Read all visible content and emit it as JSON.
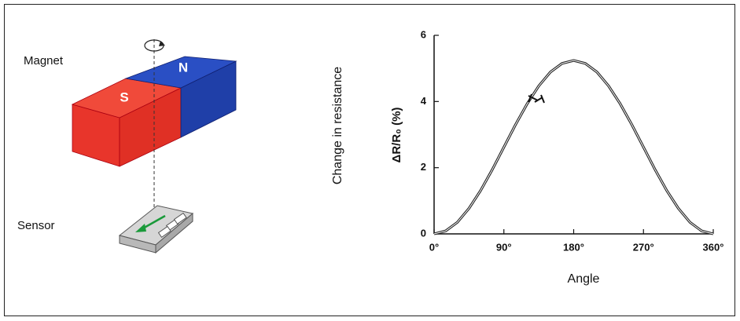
{
  "diagram": {
    "magnet_label": "Magnet",
    "sensor_label": "Sensor",
    "south_pole": "S",
    "north_pole": "N"
  },
  "chart_data": {
    "type": "line",
    "side_label": "Change in resistance",
    "y_label": "ΔR/R₀ (%)",
    "x_label": "Angle",
    "x": [
      0,
      15,
      30,
      45,
      60,
      75,
      90,
      105,
      120,
      135,
      150,
      165,
      180,
      195,
      210,
      225,
      240,
      255,
      270,
      285,
      300,
      315,
      330,
      345,
      360
    ],
    "series": [
      {
        "color": "#222222",
        "values": [
          0,
          0.09,
          0.35,
          0.77,
          1.31,
          1.94,
          2.62,
          3.3,
          3.93,
          4.47,
          4.89,
          5.15,
          5.24,
          5.15,
          4.89,
          4.47,
          3.93,
          3.3,
          2.62,
          1.94,
          1.31,
          0.77,
          0.35,
          0.09,
          0
        ]
      }
    ],
    "xlim": [
      0,
      360
    ],
    "xticks": [
      {
        "value": 0,
        "label": "0°"
      },
      {
        "value": 90,
        "label": "90°"
      },
      {
        "value": 180,
        "label": "180°"
      },
      {
        "value": 270,
        "label": "270°"
      },
      {
        "value": 360,
        "label": "360°"
      }
    ],
    "ylim": [
      0,
      6
    ],
    "yticks": [
      0,
      2,
      4,
      6
    ]
  }
}
